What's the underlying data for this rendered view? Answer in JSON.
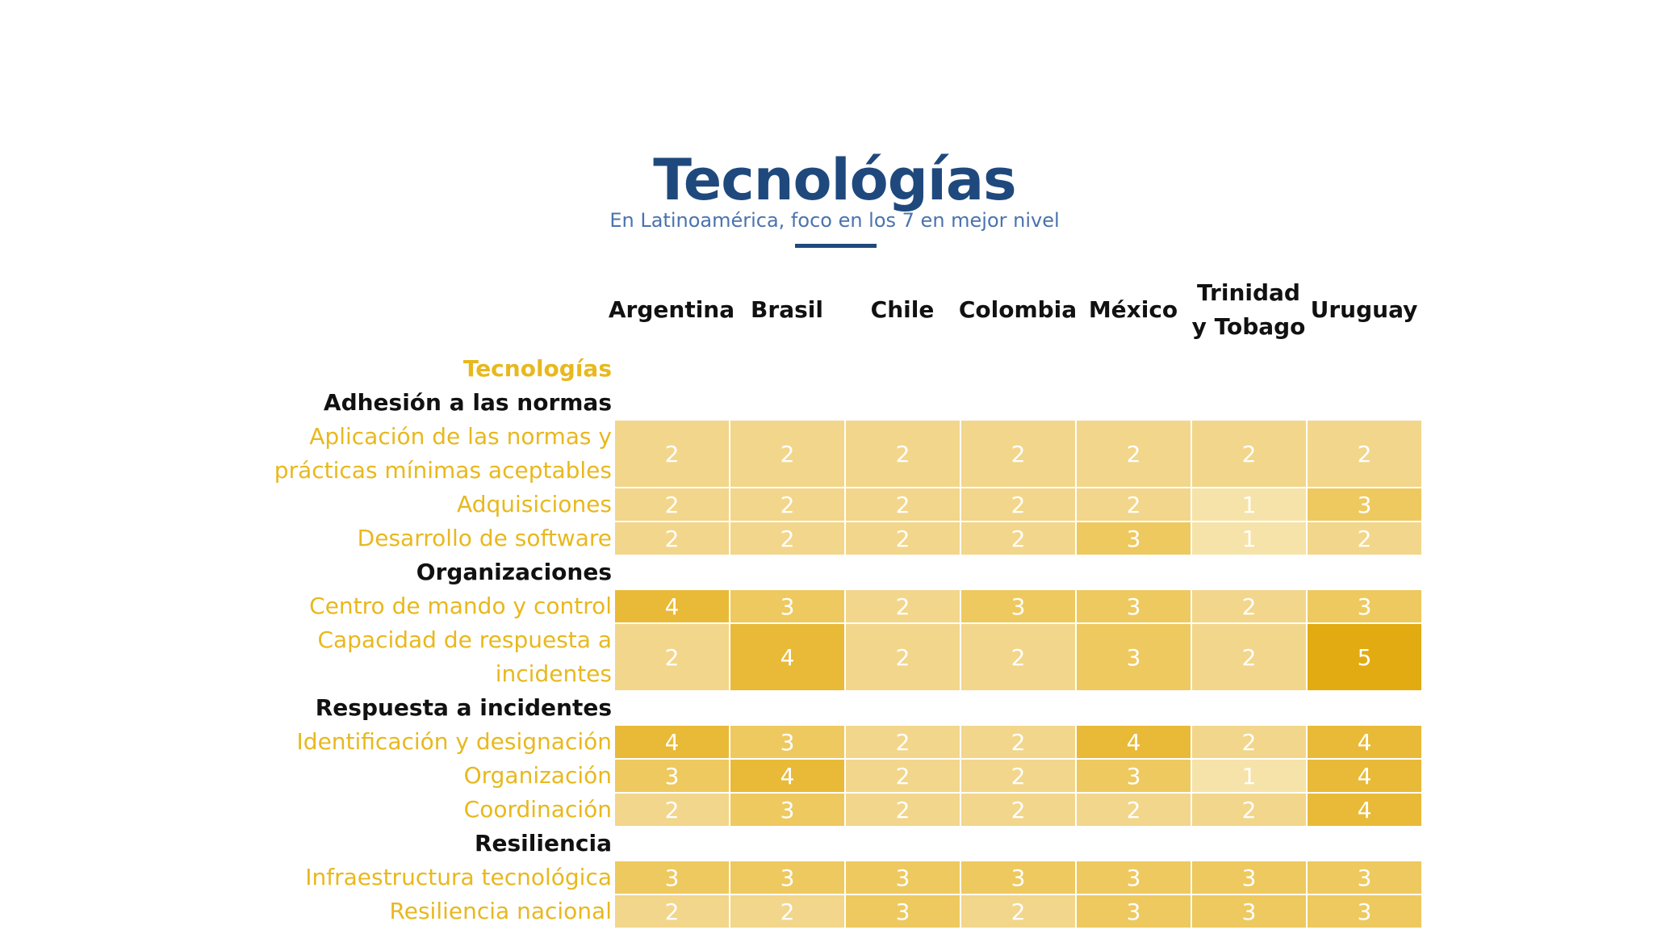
{
  "chart_data": {
    "type": "heatmap",
    "title": "Tecnológías",
    "subtitle": "En Latinoamérica, foco en los 7 en mejor nivel",
    "columns": [
      "Argentina",
      "Brasil",
      "Chile",
      "Colombia",
      "México",
      "Trinidad\ny Tobago",
      "Uruguay"
    ],
    "rows": [
      {
        "label": "Tecnologías",
        "kind": "topic"
      },
      {
        "label": "Adhesión a las normas",
        "kind": "section"
      },
      {
        "label": "Aplicación de las normas y\nprácticas mínimas aceptables",
        "kind": "item",
        "values": [
          2,
          2,
          2,
          2,
          2,
          2,
          2
        ]
      },
      {
        "label": "Adquisiciones",
        "kind": "item",
        "values": [
          2,
          2,
          2,
          2,
          2,
          1,
          3
        ]
      },
      {
        "label": "Desarrollo de software",
        "kind": "item",
        "values": [
          2,
          2,
          2,
          2,
          3,
          1,
          2
        ]
      },
      {
        "label": "Organizaciones",
        "kind": "section"
      },
      {
        "label": "Centro de mando y control",
        "kind": "item",
        "values": [
          4,
          3,
          2,
          3,
          3,
          2,
          3
        ]
      },
      {
        "label": "Capacidad de respuesta a\nincidentes",
        "kind": "item",
        "values": [
          2,
          4,
          2,
          2,
          3,
          2,
          5
        ]
      },
      {
        "label": "Respuesta a incidentes",
        "kind": "section"
      },
      {
        "label": "Identificación y designación",
        "kind": "item",
        "values": [
          4,
          3,
          2,
          2,
          4,
          2,
          4
        ]
      },
      {
        "label": "Organización",
        "kind": "item",
        "values": [
          3,
          4,
          2,
          2,
          3,
          1,
          4
        ]
      },
      {
        "label": "Coordinación",
        "kind": "item",
        "values": [
          2,
          3,
          2,
          2,
          2,
          2,
          4
        ]
      },
      {
        "label": "Resiliencia",
        "kind": "section"
      },
      {
        "label": "Infraestructura tecnológica",
        "kind": "item",
        "values": [
          3,
          3,
          3,
          3,
          3,
          3,
          3
        ]
      },
      {
        "label": "Resiliencia nacional",
        "kind": "item",
        "values": [
          2,
          2,
          3,
          2,
          3,
          3,
          3
        ]
      }
    ],
    "value_range": [
      1,
      5
    ],
    "colors": {
      "1": "#f6e3a9",
      "2": "#f2d68b",
      "3": "#eec95f",
      "4": "#e9ba38",
      "5": "#e2ab12"
    },
    "title_color": "#1f497d",
    "subtitle_color": "#4a73ad",
    "label_color": "#e8b81e"
  }
}
